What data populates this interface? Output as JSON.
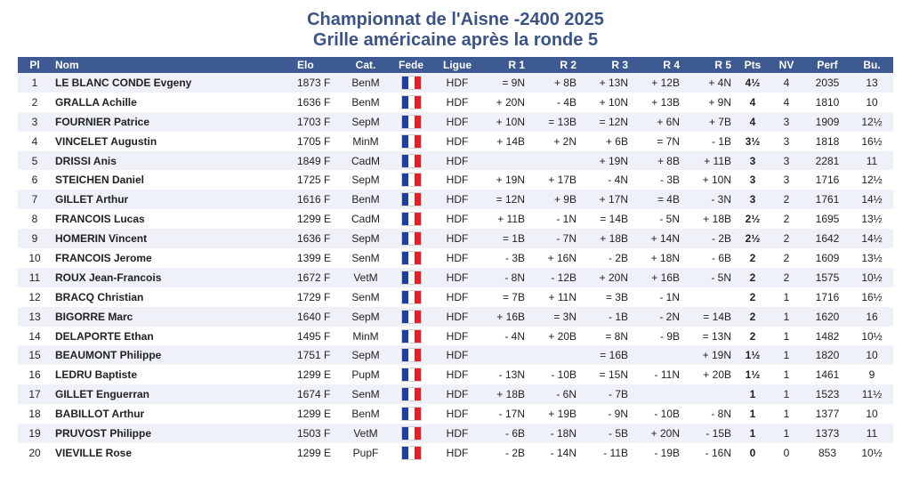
{
  "title": "Championnat de l'Aisne -2400 2025",
  "subtitle": "Grille américaine après la ronde 5",
  "flag_icon": "french-flag-icon",
  "colors": {
    "header_bg": "#3d5a92",
    "title": "#3a5488",
    "stripe": "#eef1f8"
  },
  "headers": [
    "Pl",
    "Nom",
    "Elo",
    "Cat.",
    "Fede",
    "Ligue",
    "R 1",
    "R 2",
    "R 3",
    "R 4",
    "R 5",
    "Pts",
    "NV",
    "Perf",
    "Bu."
  ],
  "rows": [
    {
      "pl": "1",
      "nom": "LE BLANC CONDE Evgeny",
      "elo": "1873 F",
      "cat": "BenM",
      "ligue": "HDF",
      "r1": "= 9N",
      "r2": "+ 8B",
      "r3": "+ 13N",
      "r4": "+ 12B",
      "r5": "+ 4N",
      "pts": "4½",
      "nv": "4",
      "perf": "2035",
      "bu": "13"
    },
    {
      "pl": "2",
      "nom": "GRALLA Achille",
      "elo": "1636 F",
      "cat": "BenM",
      "ligue": "HDF",
      "r1": "+ 20N",
      "r2": "- 4B",
      "r3": "+ 10N",
      "r4": "+ 13B",
      "r5": "+ 9N",
      "pts": "4",
      "nv": "4",
      "perf": "1810",
      "bu": "10"
    },
    {
      "pl": "3",
      "nom": "FOURNIER Patrice",
      "elo": "1703 F",
      "cat": "SepM",
      "ligue": "HDF",
      "r1": "+ 10N",
      "r2": "= 13B",
      "r3": "= 12N",
      "r4": "+ 6N",
      "r5": "+ 7B",
      "pts": "4",
      "nv": "3",
      "perf": "1909",
      "bu": "12½"
    },
    {
      "pl": "4",
      "nom": "VINCELET Augustin",
      "elo": "1705 F",
      "cat": "MinM",
      "ligue": "HDF",
      "r1": "+ 14B",
      "r2": "+ 2N",
      "r3": "+ 6B",
      "r4": "= 7N",
      "r5": "- 1B",
      "pts": "3½",
      "nv": "3",
      "perf": "1818",
      "bu": "16½"
    },
    {
      "pl": "5",
      "nom": "DRISSI Anis",
      "elo": "1849 F",
      "cat": "CadM",
      "ligue": "HDF",
      "r1": "",
      "r2": "",
      "r3": "+ 19N",
      "r4": "+ 8B",
      "r5": "+ 11B",
      "pts": "3",
      "nv": "3",
      "perf": "2281",
      "bu": "11"
    },
    {
      "pl": "6",
      "nom": "STEICHEN Daniel",
      "elo": "1725 F",
      "cat": "SepM",
      "ligue": "HDF",
      "r1": "+ 19N",
      "r2": "+ 17B",
      "r3": "- 4N",
      "r4": "- 3B",
      "r5": "+ 10N",
      "pts": "3",
      "nv": "3",
      "perf": "1716",
      "bu": "12½"
    },
    {
      "pl": "7",
      "nom": "GILLET Arthur",
      "elo": "1616 F",
      "cat": "BenM",
      "ligue": "HDF",
      "r1": "= 12N",
      "r2": "+ 9B",
      "r3": "+ 17N",
      "r4": "= 4B",
      "r5": "- 3N",
      "pts": "3",
      "nv": "2",
      "perf": "1761",
      "bu": "14½"
    },
    {
      "pl": "8",
      "nom": "FRANCOIS Lucas",
      "elo": "1299 E",
      "cat": "CadM",
      "ligue": "HDF",
      "r1": "+ 11B",
      "r2": "- 1N",
      "r3": "= 14B",
      "r4": "- 5N",
      "r5": "+ 18B",
      "pts": "2½",
      "nv": "2",
      "perf": "1695",
      "bu": "13½"
    },
    {
      "pl": "9",
      "nom": "HOMERIN Vincent",
      "elo": "1636 F",
      "cat": "SepM",
      "ligue": "HDF",
      "r1": "= 1B",
      "r2": "- 7N",
      "r3": "+ 18B",
      "r4": "+ 14N",
      "r5": "- 2B",
      "pts": "2½",
      "nv": "2",
      "perf": "1642",
      "bu": "14½"
    },
    {
      "pl": "10",
      "nom": "FRANCOIS Jerome",
      "elo": "1399 E",
      "cat": "SenM",
      "ligue": "HDF",
      "r1": "- 3B",
      "r2": "+ 16N",
      "r3": "- 2B",
      "r4": "+ 18N",
      "r5": "- 6B",
      "pts": "2",
      "nv": "2",
      "perf": "1609",
      "bu": "13½"
    },
    {
      "pl": "11",
      "nom": "ROUX Jean-Francois",
      "elo": "1672 F",
      "cat": "VetM",
      "ligue": "HDF",
      "r1": "- 8N",
      "r2": "- 12B",
      "r3": "+ 20N",
      "r4": "+ 16B",
      "r5": "- 5N",
      "pts": "2",
      "nv": "2",
      "perf": "1575",
      "bu": "10½"
    },
    {
      "pl": "12",
      "nom": "BRACQ Christian",
      "elo": "1729 F",
      "cat": "SenM",
      "ligue": "HDF",
      "r1": "= 7B",
      "r2": "+ 11N",
      "r3": "= 3B",
      "r4": "- 1N",
      "r5": "",
      "pts": "2",
      "nv": "1",
      "perf": "1716",
      "bu": "16½"
    },
    {
      "pl": "13",
      "nom": "BIGORRE Marc",
      "elo": "1640 F",
      "cat": "SepM",
      "ligue": "HDF",
      "r1": "+ 16B",
      "r2": "= 3N",
      "r3": "- 1B",
      "r4": "- 2N",
      "r5": "= 14B",
      "pts": "2",
      "nv": "1",
      "perf": "1620",
      "bu": "16"
    },
    {
      "pl": "14",
      "nom": "DELAPORTE Ethan",
      "elo": "1495 F",
      "cat": "MinM",
      "ligue": "HDF",
      "r1": "- 4N",
      "r2": "+ 20B",
      "r3": "= 8N",
      "r4": "- 9B",
      "r5": "= 13N",
      "pts": "2",
      "nv": "1",
      "perf": "1482",
      "bu": "10½"
    },
    {
      "pl": "15",
      "nom": "BEAUMONT Philippe",
      "elo": "1751 F",
      "cat": "SepM",
      "ligue": "HDF",
      "r1": "",
      "r2": "",
      "r3": "= 16B",
      "r4": "",
      "r5": "+ 19N",
      "pts": "1½",
      "nv": "1",
      "perf": "1820",
      "bu": "10"
    },
    {
      "pl": "16",
      "nom": "LEDRU Baptiste",
      "elo": "1299 E",
      "cat": "PupM",
      "ligue": "HDF",
      "r1": "- 13N",
      "r2": "- 10B",
      "r3": "= 15N",
      "r4": "- 11N",
      "r5": "+ 20B",
      "pts": "1½",
      "nv": "1",
      "perf": "1461",
      "bu": "9"
    },
    {
      "pl": "17",
      "nom": "GILLET Enguerran",
      "elo": "1674 F",
      "cat": "SenM",
      "ligue": "HDF",
      "r1": "+ 18B",
      "r2": "- 6N",
      "r3": "- 7B",
      "r4": "",
      "r5": "",
      "pts": "1",
      "nv": "1",
      "perf": "1523",
      "bu": "11½"
    },
    {
      "pl": "18",
      "nom": "BABILLOT Arthur",
      "elo": "1299 E",
      "cat": "BenM",
      "ligue": "HDF",
      "r1": "- 17N",
      "r2": "+ 19B",
      "r3": "- 9N",
      "r4": "- 10B",
      "r5": "- 8N",
      "pts": "1",
      "nv": "1",
      "perf": "1377",
      "bu": "10"
    },
    {
      "pl": "19",
      "nom": "PRUVOST Philippe",
      "elo": "1503 F",
      "cat": "VetM",
      "ligue": "HDF",
      "r1": "- 6B",
      "r2": "- 18N",
      "r3": "- 5B",
      "r4": "+ 20N",
      "r5": "- 15B",
      "pts": "1",
      "nv": "1",
      "perf": "1373",
      "bu": "11"
    },
    {
      "pl": "20",
      "nom": "VIEVILLE Rose",
      "elo": "1299 E",
      "cat": "PupF",
      "ligue": "HDF",
      "r1": "- 2B",
      "r2": "- 14N",
      "r3": "- 11B",
      "r4": "- 19B",
      "r5": "- 16N",
      "pts": "0",
      "nv": "0",
      "perf": "853",
      "bu": "10½"
    }
  ]
}
